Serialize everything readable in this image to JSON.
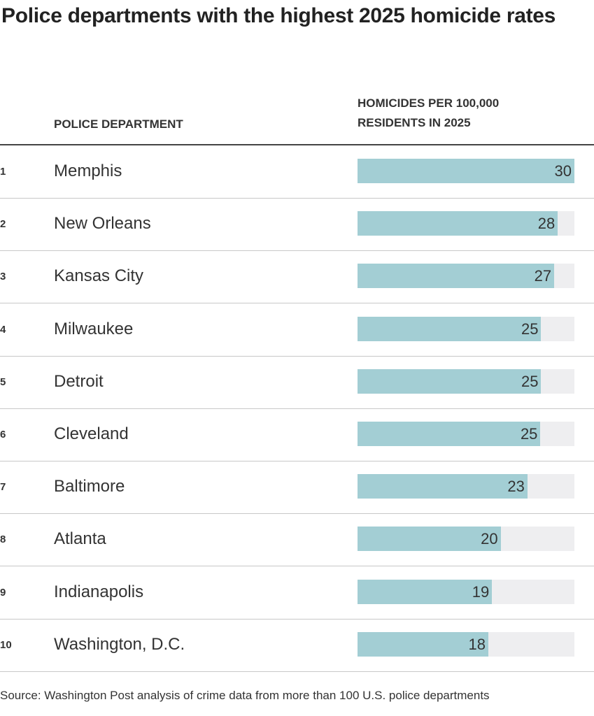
{
  "chart_data": {
    "type": "bar",
    "title": "Police departments with the highest 2025 homicide rates",
    "column_headers": {
      "department": "POLICE DEPARTMENT",
      "value_line1": "HOMICIDES PER 100,000",
      "value_line2": "RESIDENTS IN 2025"
    },
    "xlim": [
      0,
      30
    ],
    "colors": {
      "bar": "#a3ced4",
      "track": "#eeeef0"
    },
    "rows": [
      {
        "rank": "1",
        "department": "Memphis",
        "value": 30,
        "label": "30"
      },
      {
        "rank": "2",
        "department": "New Orleans",
        "value": 27.7,
        "label": "28"
      },
      {
        "rank": "3",
        "department": "Kansas City",
        "value": 27.2,
        "label": "27"
      },
      {
        "rank": "4",
        "department": "Milwaukee",
        "value": 25.4,
        "label": "25"
      },
      {
        "rank": "5",
        "department": "Detroit",
        "value": 25.4,
        "label": "25"
      },
      {
        "rank": "6",
        "department": "Cleveland",
        "value": 25.3,
        "label": "25"
      },
      {
        "rank": "7",
        "department": "Baltimore",
        "value": 23.5,
        "label": "23"
      },
      {
        "rank": "8",
        "department": "Atlanta",
        "value": 19.8,
        "label": "20"
      },
      {
        "rank": "9",
        "department": "Indianapolis",
        "value": 18.6,
        "label": "19"
      },
      {
        "rank": "10",
        "department": "Washington, D.C.",
        "value": 18.1,
        "label": "18"
      }
    ],
    "source": "Source: Washington Post analysis of crime data from more than 100 U.S. police departments"
  }
}
